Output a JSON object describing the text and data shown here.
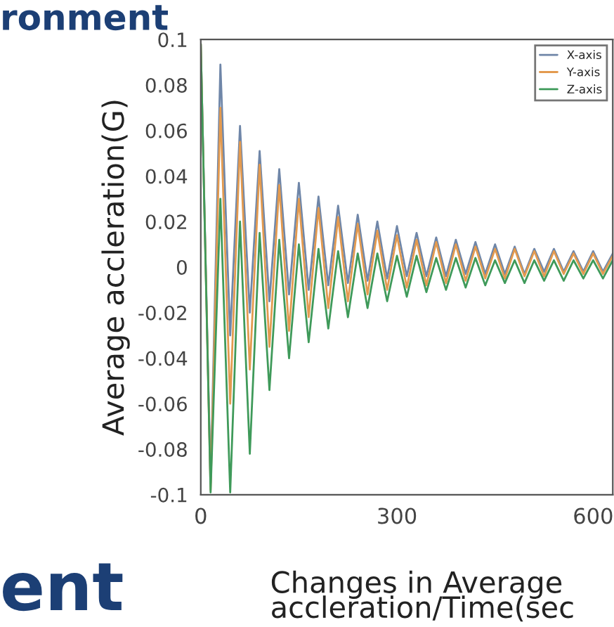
{
  "chart_data": {
    "type": "line",
    "title": "ronment",
    "xlabel": "Changes in Average\naccleration/Time(sec",
    "ylabel": "Average accleration(G)",
    "annotations": [
      "ent"
    ],
    "x": [
      0,
      15,
      30,
      45,
      60,
      75,
      90,
      105,
      120,
      135,
      150,
      165,
      180,
      195,
      210,
      225,
      240,
      255,
      270,
      285,
      300,
      315,
      330,
      345,
      360,
      375,
      390,
      405,
      420,
      435,
      450,
      465,
      480,
      495,
      510,
      525,
      540,
      555,
      570,
      585,
      600,
      615,
      630
    ],
    "series": [
      {
        "name": "X-axis",
        "color": "#6f86a8",
        "values": [
          0.098,
          -0.095,
          0.089,
          -0.03,
          0.062,
          -0.02,
          0.051,
          -0.015,
          0.043,
          -0.012,
          0.037,
          -0.01,
          0.031,
          -0.008,
          0.027,
          -0.007,
          0.023,
          -0.006,
          0.02,
          -0.005,
          0.018,
          -0.004,
          0.015,
          -0.004,
          0.013,
          -0.004,
          0.012,
          -0.003,
          0.011,
          -0.003,
          0.01,
          -0.003,
          0.009,
          -0.003,
          0.008,
          -0.002,
          0.008,
          -0.002,
          0.007,
          -0.002,
          0.007,
          -0.002,
          0.006
        ]
      },
      {
        "name": "Y-axis",
        "color": "#e39a4f",
        "values": [
          0.098,
          -0.098,
          0.07,
          -0.06,
          0.055,
          -0.045,
          0.045,
          -0.035,
          0.036,
          -0.028,
          0.03,
          -0.022,
          0.026,
          -0.018,
          0.022,
          -0.015,
          0.019,
          -0.012,
          0.016,
          -0.01,
          0.014,
          -0.009,
          0.012,
          -0.008,
          0.011,
          -0.007,
          0.01,
          -0.006,
          0.009,
          -0.005,
          0.008,
          -0.005,
          0.008,
          -0.004,
          0.007,
          -0.004,
          0.007,
          -0.003,
          0.006,
          -0.003,
          0.006,
          -0.003,
          0.005
        ]
      },
      {
        "name": "Z-axis",
        "color": "#3f9a5a",
        "values": [
          0.098,
          -0.099,
          0.03,
          -0.099,
          0.02,
          -0.082,
          0.015,
          -0.054,
          0.012,
          -0.04,
          0.01,
          -0.033,
          0.008,
          -0.027,
          0.007,
          -0.022,
          0.006,
          -0.018,
          0.006,
          -0.015,
          0.005,
          -0.013,
          0.005,
          -0.011,
          0.004,
          -0.01,
          0.004,
          -0.009,
          0.004,
          -0.008,
          0.003,
          -0.007,
          0.003,
          -0.007,
          0.003,
          -0.006,
          0.003,
          -0.006,
          0.003,
          -0.005,
          0.003,
          -0.005,
          0.003
        ]
      }
    ],
    "xlim": [
      0,
      630
    ],
    "xticks": [
      0,
      300,
      600
    ],
    "ylim": [
      -0.1,
      0.1
    ],
    "yticks": [
      0.1,
      0.08,
      0.06,
      0.04,
      0.02,
      0,
      -0.02,
      -0.04,
      -0.06,
      -0.08,
      -0.1
    ],
    "grid": false,
    "legend": "top right",
    "marker": "none",
    "line_style": "solid"
  }
}
